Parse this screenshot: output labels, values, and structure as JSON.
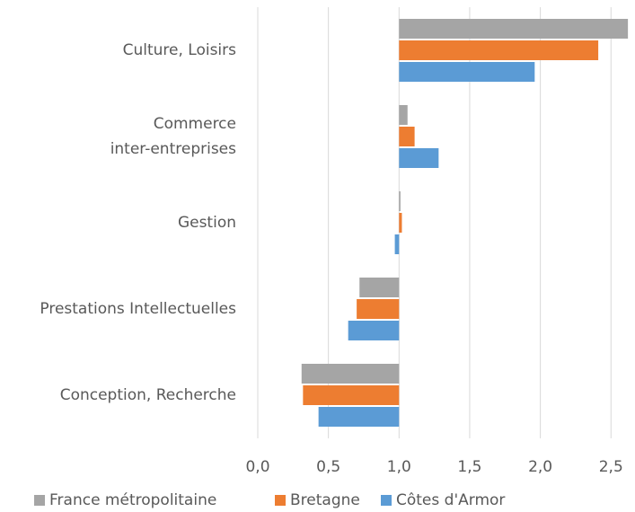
{
  "chart_data": {
    "type": "bar",
    "orientation": "horizontal",
    "bar_base": 1,
    "categories": [
      "Culture, Loisirs",
      "Commerce\ninter-entreprises",
      "Gestion",
      "Prestations Intellectuelles",
      "Conception, Recherche"
    ],
    "series": [
      {
        "name": "France métropolitaine",
        "color": "#a5a5a5",
        "values": [
          2.62,
          1.06,
          1.01,
          0.72,
          0.31
        ]
      },
      {
        "name": "Bretagne",
        "color": "#ed7d31",
        "values": [
          2.41,
          1.11,
          1.02,
          0.7,
          0.32
        ]
      },
      {
        "name": "Côtes d'Armor",
        "color": "#5b9bd5",
        "values": [
          1.96,
          1.28,
          0.97,
          0.64,
          0.43
        ]
      }
    ],
    "xlim": [
      0,
      2.67
    ],
    "xticks": [
      {
        "value": 0,
        "label": "0,0"
      },
      {
        "value": 0.5,
        "label": "0,5"
      },
      {
        "value": 1,
        "label": "1,0"
      },
      {
        "value": 1.5,
        "label": "1,5"
      },
      {
        "value": 2,
        "label": "2,0"
      },
      {
        "value": 2.5,
        "label": "2,5"
      }
    ],
    "grid": true,
    "legend": "bottom"
  }
}
